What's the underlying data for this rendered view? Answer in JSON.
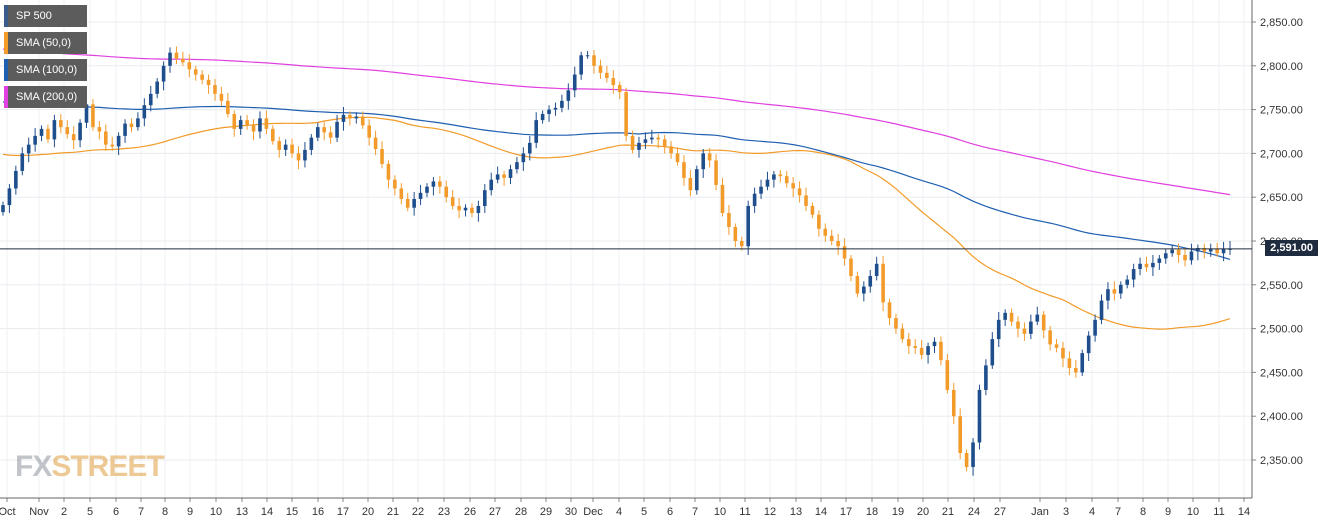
{
  "legend": [
    {
      "label": "SP 500",
      "color": "#3b5b8c"
    },
    {
      "label": "SMA (50,0)",
      "color": "#f29b2a"
    },
    {
      "label": "SMA (100,0)",
      "color": "#1f5fb0"
    },
    {
      "label": "SMA (200,0)",
      "color": "#e040e0"
    }
  ],
  "current_price": "2,591.00",
  "watermark": {
    "fx": "FX",
    "street": "STREET"
  },
  "chart_data": {
    "type": "candlestick",
    "title": "",
    "xlabel": "",
    "ylabel": "",
    "y_ticks": [
      "2,350.00",
      "2,400.00",
      "2,450.00",
      "2,500.00",
      "2,550.00",
      "2,600.00",
      "2,650.00",
      "2,700.00",
      "2,750.00",
      "2,800.00",
      "2,850.00"
    ],
    "x_ticks": [
      "Oct",
      "Nov",
      "2",
      "5",
      "6",
      "7",
      "8",
      "9",
      "10",
      "13",
      "14",
      "15",
      "16",
      "17",
      "20",
      "21",
      "22",
      "23",
      "26",
      "27",
      "28",
      "29",
      "30",
      "Dec",
      "4",
      "5",
      "6",
      "7",
      "10",
      "11",
      "12",
      "13",
      "14",
      "17",
      "18",
      "19",
      "20",
      "21",
      "24",
      "27",
      "Jan",
      "3",
      "4",
      "7",
      "8",
      "9",
      "10",
      "11",
      "14"
    ],
    "ylim": [
      2325,
      2870
    ],
    "grid": true,
    "legend_position": "top-left",
    "up_color": "#1f4e8c",
    "down_color": "#f29b2a",
    "candle_closes": [
      2641,
      2660,
      2680,
      2700,
      2710,
      2720,
      2728,
      2716,
      2738,
      2730,
      2722,
      2715,
      2735,
      2756,
      2730,
      2725,
      2710,
      2708,
      2720,
      2734,
      2730,
      2740,
      2755,
      2768,
      2782,
      2800,
      2815,
      2808,
      2804,
      2796,
      2790,
      2784,
      2778,
      2768,
      2760,
      2745,
      2728,
      2738,
      2732,
      2725,
      2740,
      2728,
      2714,
      2704,
      2710,
      2700,
      2692,
      2704,
      2718,
      2730,
      2724,
      2718,
      2736,
      2744,
      2740,
      2742,
      2732,
      2718,
      2705,
      2688,
      2670,
      2660,
      2648,
      2638,
      2648,
      2655,
      2662,
      2668,
      2662,
      2650,
      2640,
      2635,
      2638,
      2632,
      2640,
      2658,
      2670,
      2676,
      2672,
      2682,
      2690,
      2700,
      2712,
      2738,
      2745,
      2750,
      2752,
      2760,
      2772,
      2790,
      2812,
      2812,
      2800,
      2792,
      2786,
      2778,
      2770,
      2720,
      2704,
      2712,
      2716,
      2718,
      2716,
      2708,
      2700,
      2690,
      2672,
      2658,
      2682,
      2700,
      2692,
      2664,
      2632,
      2616,
      2600,
      2594,
      2640,
      2654,
      2662,
      2670,
      2676,
      2674,
      2666,
      2660,
      2652,
      2640,
      2630,
      2614,
      2606,
      2600,
      2594,
      2580,
      2560,
      2540,
      2548,
      2560,
      2574,
      2530,
      2512,
      2500,
      2488,
      2480,
      2478,
      2470,
      2480,
      2485,
      2464,
      2430,
      2400,
      2358,
      2342,
      2370,
      2430,
      2458,
      2488,
      2510,
      2518,
      2508,
      2500,
      2494,
      2508,
      2516,
      2498,
      2482,
      2478,
      2466,
      2455,
      2450,
      2472,
      2492,
      2510,
      2532,
      2545,
      2540,
      2550,
      2556,
      2568,
      2574,
      2570,
      2575,
      2580,
      2586,
      2590,
      2584,
      2578,
      2588,
      2592,
      2588,
      2591,
      2586,
      2591,
      2591
    ]
  }
}
